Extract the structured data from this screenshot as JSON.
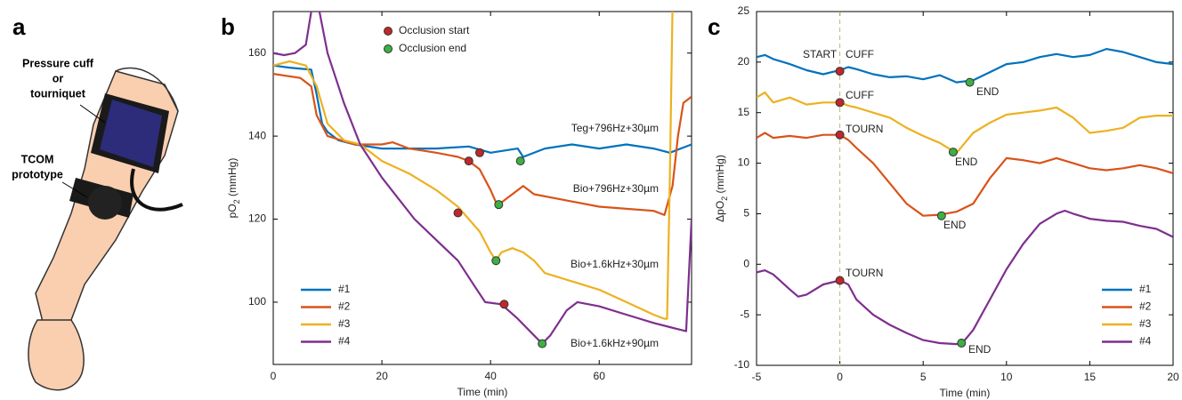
{
  "panel_a": {
    "panel_label": "a",
    "labels": [
      "Pressure cuff",
      "or",
      "tourniquet",
      "TCOM",
      "prototype"
    ]
  },
  "chart_data": [
    {
      "type": "line",
      "panel_label": "b",
      "ylabel": [
        "pO",
        "2",
        " (mmHg)"
      ],
      "xlabel": "Time (min)",
      "xlim": [
        0,
        77
      ],
      "ylim": [
        85,
        170
      ],
      "xticks": [
        0,
        20,
        40,
        60
      ],
      "yticks": [
        100,
        120,
        140,
        160
      ],
      "series": [
        {
          "name": "#1",
          "color": "#0072bd",
          "x": [
            0,
            3,
            7,
            8,
            9,
            10,
            12,
            15,
            20,
            25,
            30,
            36,
            40,
            45,
            46,
            50,
            55,
            60,
            65,
            70,
            73,
            77
          ],
          "values": [
            157,
            156.5,
            156,
            150,
            143,
            141,
            139,
            138,
            137,
            137,
            137,
            137.5,
            136,
            137,
            135,
            137,
            138,
            137,
            138,
            137,
            136,
            138
          ]
        },
        {
          "name": "#2",
          "color": "#d95319",
          "x": [
            0,
            5,
            7,
            8,
            10,
            15,
            20,
            22,
            25,
            30,
            34,
            36,
            38,
            40,
            41,
            42,
            44,
            46,
            48,
            52,
            56,
            60,
            65,
            70,
            72,
            73.5,
            74.5,
            75.5,
            77
          ],
          "values": [
            155,
            154,
            152,
            145,
            140,
            138,
            138,
            138.5,
            137,
            136,
            135,
            134,
            132,
            127,
            124,
            124,
            126,
            128,
            126,
            125,
            124,
            123,
            122.5,
            122,
            121,
            128,
            140,
            148,
            149.5
          ]
        },
        {
          "name": "#3",
          "color": "#edb120",
          "x": [
            0,
            3,
            6,
            8,
            10,
            13,
            16,
            20,
            25,
            30,
            34,
            36,
            38,
            40,
            41,
            42,
            44,
            46,
            48,
            50,
            55,
            60,
            65,
            70,
            72,
            72.5,
            73,
            73.5
          ],
          "values": [
            157,
            158,
            157,
            152,
            143,
            139,
            138,
            134,
            131,
            127,
            123,
            120,
            117,
            112,
            110,
            112,
            113,
            112,
            110,
            107,
            105,
            103,
            100,
            97,
            96,
            96,
            130,
            171
          ]
        },
        {
          "name": "#4",
          "color": "#7e2f8e",
          "x": [
            0,
            2,
            4,
            6,
            7,
            7.5,
            8.5,
            10,
            13,
            16,
            20,
            23,
            26,
            30,
            34,
            37,
            39,
            42,
            45,
            48,
            49.5,
            51,
            54,
            56,
            60,
            65,
            70,
            73,
            76,
            77
          ],
          "values": [
            160,
            159.5,
            160,
            162,
            170,
            172,
            170,
            160,
            148,
            138,
            130,
            125,
            120,
            115,
            110,
            104,
            100,
            99.5,
            96,
            92,
            90,
            92,
            98,
            100,
            99,
            97,
            95,
            94,
            93,
            120
          ]
        }
      ],
      "markers": [
        {
          "name": "Occlusion start",
          "color": "#c0282a",
          "x": [
            38,
            36,
            34,
            42.5
          ],
          "values": [
            136,
            134,
            121.5,
            99.5
          ]
        },
        {
          "name": "Occlusion end",
          "color": "#3cb043",
          "x": [
            45.5,
            41.5,
            41,
            49.5
          ],
          "values": [
            134,
            123.5,
            110,
            90
          ]
        }
      ],
      "annotations": [
        {
          "text": "Teg+796Hz+30µm",
          "color": "#0072bd"
        },
        {
          "text": "Bio+796Hz+30µm",
          "color": "#d95319"
        },
        {
          "text": "Bio+1.6kHz+30µm",
          "color": "#c9a227"
        },
        {
          "text": "Bio+1.6kHz+90µm",
          "color": "#7e2f8e"
        }
      ]
    },
    {
      "type": "line",
      "panel_label": "c",
      "ylabel": [
        "ΔpO",
        "2",
        " (mmHg)"
      ],
      "xlabel": "Time (min)",
      "xlim": [
        -5,
        20
      ],
      "ylim": [
        -10,
        25
      ],
      "xticks": [
        -5,
        0,
        5,
        10,
        15,
        20
      ],
      "yticks": [
        -10,
        -5,
        0,
        5,
        10,
        15,
        20,
        25
      ],
      "series": [
        {
          "name": "#1",
          "color": "#0072bd",
          "x": [
            -5,
            -4.5,
            -4,
            -3,
            -2,
            -1,
            -0.5,
            0,
            0.5,
            1,
            2,
            3,
            4,
            5,
            6,
            7,
            8,
            9,
            10,
            11,
            12,
            13,
            14,
            15,
            16,
            17,
            18,
            19,
            20
          ],
          "values": [
            20.5,
            20.7,
            20.3,
            19.8,
            19.2,
            18.8,
            19,
            19.2,
            19.5,
            19.3,
            18.8,
            18.5,
            18.6,
            18.3,
            18.7,
            18,
            18.2,
            19,
            19.8,
            20,
            20.5,
            20.8,
            20.5,
            20.7,
            21.3,
            21,
            20.5,
            20,
            19.8
          ]
        },
        {
          "name": "#2",
          "color": "#d95319",
          "x": [
            -5,
            -4.5,
            -4,
            -3,
            -2,
            -1,
            0,
            0.5,
            1,
            2,
            3,
            4,
            5,
            6,
            7,
            8,
            9,
            10,
            11,
            12,
            13,
            14,
            15,
            16,
            17,
            18,
            19,
            20
          ],
          "values": [
            12.5,
            13,
            12.5,
            12.7,
            12.5,
            12.8,
            12.8,
            12.3,
            11.5,
            10,
            8,
            6,
            4.8,
            4.9,
            5.2,
            6,
            8.5,
            10.5,
            10.3,
            10,
            10.5,
            10,
            9.5,
            9.3,
            9.5,
            9.8,
            9.5,
            9
          ]
        },
        {
          "name": "#3",
          "color": "#edb120",
          "x": [
            -5,
            -4.5,
            -4,
            -3,
            -2,
            -1,
            0,
            0.5,
            1,
            2,
            3,
            4,
            5,
            6,
            7,
            7.5,
            8,
            9,
            10,
            11,
            12,
            13,
            14,
            15,
            16,
            17,
            18,
            19,
            20
          ],
          "values": [
            16.5,
            17,
            16,
            16.5,
            15.8,
            16,
            16,
            15.7,
            15.5,
            15,
            14.5,
            13.5,
            12.7,
            12,
            11,
            12,
            13,
            14,
            14.8,
            15,
            15.2,
            15.5,
            14.5,
            13,
            13.2,
            13.5,
            14.5,
            14.7,
            14.7
          ]
        },
        {
          "name": "#4",
          "color": "#7e2f8e",
          "x": [
            -5,
            -4.5,
            -4,
            -3,
            -2.5,
            -2,
            -1,
            0,
            0.5,
            1,
            2,
            3,
            4,
            5,
            6,
            7,
            7.5,
            8,
            9,
            10,
            11,
            12,
            13,
            13.5,
            14,
            15,
            16,
            17,
            18,
            19,
            20
          ],
          "values": [
            -0.8,
            -0.6,
            -1,
            -2.5,
            -3.2,
            -3,
            -2,
            -1.6,
            -2,
            -3.5,
            -5,
            -6,
            -6.8,
            -7.5,
            -7.8,
            -7.9,
            -7.5,
            -6.5,
            -3.5,
            -0.5,
            2,
            4,
            5,
            5.3,
            5,
            4.5,
            4.3,
            4.2,
            3.8,
            3.5,
            2.7
          ]
        }
      ],
      "markers": [
        {
          "color": "#c0282a",
          "x": [
            0,
            0,
            0,
            0
          ],
          "values": [
            19.1,
            16,
            12.8,
            -1.6
          ]
        },
        {
          "color": "#3cb043",
          "x": [
            7.8,
            6.8,
            6.1,
            7.3
          ],
          "values": [
            18,
            11.1,
            4.8,
            -7.8
          ]
        }
      ],
      "annotations": [
        {
          "text": "START",
          "color": "#a52a2a"
        },
        {
          "text": "CUFF",
          "color": "#0072bd"
        },
        {
          "text": "END",
          "color": "#1a8a3a"
        },
        {
          "text": "CUFF",
          "color": "#c9a227"
        },
        {
          "text": "END",
          "color": "#1a8a3a"
        },
        {
          "text": "TOURN",
          "color": "#d95319"
        },
        {
          "text": "END",
          "color": "#1a8a3a"
        },
        {
          "text": "TOURN",
          "color": "#7e2f8e"
        },
        {
          "text": "END",
          "color": "#1a8a3a"
        }
      ]
    }
  ]
}
